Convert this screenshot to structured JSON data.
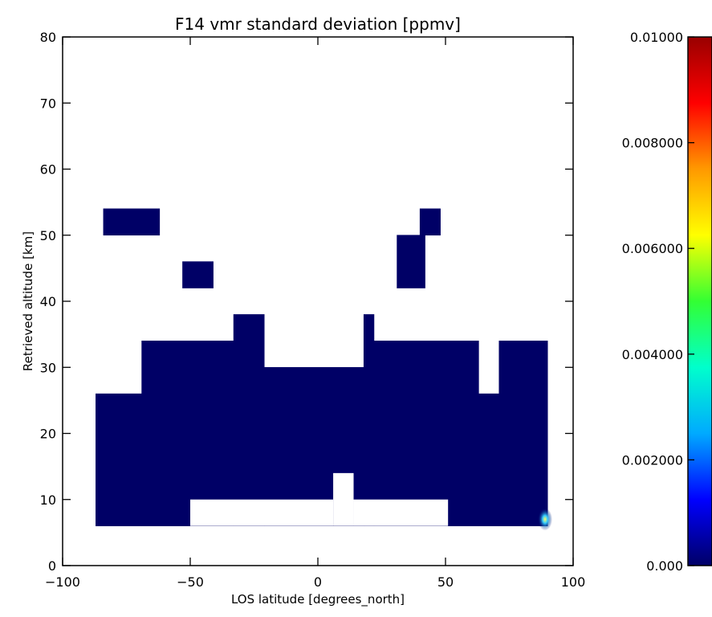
{
  "chart_data": {
    "type": "heatmap",
    "title": "F14 vmr standard deviation [ppmv]",
    "xlabel": "LOS latitude [degrees_north]",
    "ylabel": "Retrieved altitude [km]",
    "xlim": [
      -100,
      100
    ],
    "ylim": [
      0,
      80
    ],
    "xticks": [
      -100,
      -50,
      0,
      50,
      100
    ],
    "xtick_labels": [
      "−100",
      "−50",
      "0",
      "50",
      "100"
    ],
    "yticks": [
      0,
      10,
      20,
      30,
      40,
      50,
      60,
      70,
      80
    ],
    "ytick_labels": [
      "0",
      "10",
      "20",
      "30",
      "40",
      "50",
      "60",
      "70",
      "80"
    ],
    "grid": false,
    "colorbar": {
      "range": [
        0,
        0.01
      ],
      "ticks": [
        0,
        0.002,
        0.004,
        0.006,
        0.008,
        0.01
      ],
      "tick_labels": [
        "0.000",
        "0.002000",
        "0.004000",
        "0.006000",
        "0.008000",
        "0.01000"
      ],
      "colormap": [
        "#000066",
        "#0000ff",
        "#00aaff",
        "#00ffcc",
        "#33ff33",
        "#ffff00",
        "#ff9900",
        "#ff0000",
        "#990000"
      ]
    },
    "cells": [
      {
        "lat": [
          -84,
          -62
        ],
        "alt": [
          50,
          54
        ],
        "value": 0.0
      },
      {
        "lat": [
          -53,
          -41
        ],
        "alt": [
          42,
          46
        ],
        "value": 0.0
      },
      {
        "lat": [
          40,
          48
        ],
        "alt": [
          50,
          54
        ],
        "value": 0.0
      },
      {
        "lat": [
          31,
          42
        ],
        "alt": [
          42,
          50
        ],
        "value": 0.0
      },
      {
        "lat": [
          -87,
          -69
        ],
        "alt": [
          6,
          26
        ],
        "value": 0.0
      },
      {
        "lat": [
          -69,
          -33
        ],
        "alt": [
          6,
          34
        ],
        "value": 0.0
      },
      {
        "lat": [
          -33,
          -21
        ],
        "alt": [
          6,
          38
        ],
        "value": 0.0
      },
      {
        "lat": [
          -21,
          18
        ],
        "alt": [
          6,
          30
        ],
        "value": 0.0
      },
      {
        "lat": [
          18,
          22
        ],
        "alt": [
          6,
          38
        ],
        "value": 0.0
      },
      {
        "lat": [
          22,
          63
        ],
        "alt": [
          6,
          34
        ],
        "value": 0.0
      },
      {
        "lat": [
          63,
          71
        ],
        "alt": [
          6,
          26
        ],
        "value": 0.0
      },
      {
        "lat": [
          71,
          90
        ],
        "alt": [
          6,
          34
        ],
        "value": 0.0
      }
    ],
    "blank_regions": [
      {
        "lat": [
          -50,
          6
        ],
        "alt": [
          6,
          10
        ]
      },
      {
        "lat": [
          6,
          14
        ],
        "alt": [
          6,
          14
        ]
      },
      {
        "lat": [
          14,
          51
        ],
        "alt": [
          6,
          10
        ]
      }
    ],
    "hotspot": {
      "lat": 89,
      "alt": 7,
      "value": 0.0045
    }
  }
}
